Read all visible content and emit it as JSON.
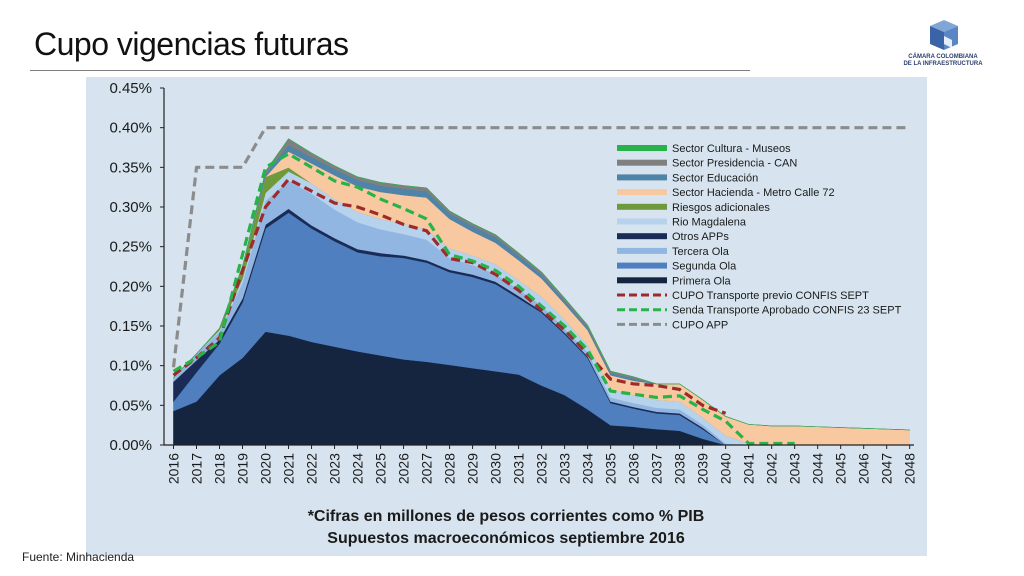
{
  "slide": {
    "title": "Cupo vigencias futuras",
    "source": "Fuente: Minhacienda",
    "logo_line1": "CÁMARA COLOMBIANA",
    "logo_line2": "DE LA INFRAESTRUCTURA"
  },
  "chart_data": {
    "type": "area",
    "stacked": true,
    "categories": [
      "2016",
      "2017",
      "2018",
      "2019",
      "2020",
      "2021",
      "2022",
      "2023",
      "2024",
      "2025",
      "2026",
      "2027",
      "2028",
      "2029",
      "2030",
      "2031",
      "2032",
      "2033",
      "2034",
      "2035",
      "2036",
      "2037",
      "2038",
      "2039",
      "2040",
      "2041",
      "2042",
      "2043",
      "2044",
      "2045",
      "2046",
      "2047",
      "2048"
    ],
    "ylim": [
      0,
      0.45
    ],
    "yticks": [
      "0.00%",
      "0.05%",
      "0.10%",
      "0.15%",
      "0.20%",
      "0.25%",
      "0.30%",
      "0.35%",
      "0.40%",
      "0.45%"
    ],
    "grid": false,
    "legend_position": "right",
    "note_line1": "*Cifras en millones de pesos corrientes como % PIB",
    "note_line2": "Supuestos macroeconómicos septiembre 2016",
    "series": [
      {
        "name": "Primera Ola",
        "color": "#15243f",
        "values": [
          0.043,
          0.055,
          0.088,
          0.11,
          0.143,
          0.138,
          0.13,
          0.124,
          0.118,
          0.113,
          0.108,
          0.105,
          0.101,
          0.097,
          0.093,
          0.089,
          0.075,
          0.063,
          0.045,
          0.025,
          0.023,
          0.02,
          0.018,
          0.008,
          0,
          0,
          0,
          0,
          0,
          0,
          0,
          0,
          0
        ]
      },
      {
        "name": "Segunda Ola",
        "color": "#4f7fbf",
        "values": [
          0.012,
          0.037,
          0.04,
          0.07,
          0.13,
          0.155,
          0.143,
          0.133,
          0.125,
          0.125,
          0.128,
          0.125,
          0.117,
          0.115,
          0.11,
          0.096,
          0.092,
          0.077,
          0.065,
          0.028,
          0.023,
          0.02,
          0.02,
          0.012,
          0,
          0,
          0,
          0,
          0,
          0,
          0,
          0,
          0
        ]
      },
      {
        "name": "Otros APPs",
        "color": "#1a2c55",
        "values": [
          0.025,
          0.015,
          0.005,
          0.005,
          0.005,
          0.005,
          0.004,
          0.004,
          0.004,
          0.004,
          0.003,
          0.003,
          0.003,
          0.003,
          0.003,
          0.003,
          0.002,
          0.002,
          0.002,
          0.002,
          0.002,
          0.002,
          0.002,
          0.002,
          0,
          0,
          0,
          0,
          0,
          0,
          0,
          0,
          0
        ]
      },
      {
        "name": "Tercera Ola",
        "color": "#92b6e2",
        "values": [
          0.005,
          0.008,
          0.01,
          0.02,
          0.03,
          0.035,
          0.04,
          0.036,
          0.034,
          0.03,
          0.027,
          0.026,
          0.015,
          0.012,
          0.01,
          0.008,
          0.007,
          0.005,
          0.005,
          0.005,
          0.005,
          0.005,
          0.005,
          0.004,
          0.002,
          0,
          0,
          0,
          0,
          0,
          0,
          0,
          0
        ]
      },
      {
        "name": "Rio Magdalena",
        "color": "#b7d2ec",
        "values": [
          0,
          0,
          0.002,
          0.005,
          0.01,
          0.012,
          0.013,
          0.013,
          0.013,
          0.013,
          0.013,
          0.013,
          0.012,
          0.012,
          0.012,
          0.012,
          0.011,
          0.011,
          0.01,
          0.01,
          0.01,
          0.01,
          0.01,
          0.009,
          0.01,
          0.002,
          0,
          0,
          0,
          0,
          0,
          0,
          0
        ]
      },
      {
        "name": "Riesgos adicionales",
        "color": "#6e9a3c",
        "values": [
          0,
          0,
          0.002,
          0.015,
          0.02,
          0.005,
          0,
          0,
          0,
          0,
          0,
          0,
          0,
          0,
          0,
          0,
          0,
          0,
          0,
          0,
          0,
          0,
          0,
          0,
          0,
          0,
          0,
          0,
          0,
          0,
          0,
          0,
          0
        ]
      },
      {
        "name": "Sector Hacienda - Metro Calle 72",
        "color": "#f8c9a0",
        "values": [
          0,
          0,
          0,
          0,
          0,
          0.02,
          0.025,
          0.03,
          0.032,
          0.034,
          0.036,
          0.04,
          0.037,
          0.03,
          0.027,
          0.025,
          0.023,
          0.02,
          0.018,
          0.018,
          0.018,
          0.02,
          0.022,
          0.022,
          0.024,
          0.024,
          0.024,
          0.024,
          0.023,
          0.022,
          0.021,
          0.02,
          0.019
        ]
      },
      {
        "name": "Sector Educación",
        "color": "#4f83a8",
        "values": [
          0,
          0,
          0,
          0,
          0.004,
          0.008,
          0.008,
          0.008,
          0.008,
          0.008,
          0.008,
          0.008,
          0.007,
          0.007,
          0.007,
          0.006,
          0.005,
          0.004,
          0.003,
          0.003,
          0.003,
          0,
          0,
          0,
          0,
          0,
          0,
          0,
          0,
          0,
          0,
          0,
          0
        ]
      },
      {
        "name": "Sector Presidencia - CAN",
        "color": "#808080",
        "values": [
          0,
          0,
          0,
          0,
          0.003,
          0.008,
          0.005,
          0.004,
          0.004,
          0.004,
          0.004,
          0.004,
          0.003,
          0.003,
          0.003,
          0.003,
          0.003,
          0.003,
          0.003,
          0.002,
          0.002,
          0,
          0,
          0,
          0,
          0,
          0,
          0,
          0,
          0,
          0,
          0,
          0
        ]
      },
      {
        "name": "Sector Cultura - Museos",
        "color": "#27b34a",
        "values": [
          0,
          0,
          0,
          0,
          0,
          0,
          0,
          0,
          0,
          0,
          0,
          0,
          0,
          0,
          0,
          0,
          0,
          0,
          0,
          0,
          0,
          0,
          0,
          0,
          0,
          0,
          0,
          0,
          0,
          0,
          0,
          0,
          0
        ]
      }
    ],
    "lines": [
      {
        "name": "CUPO Transporte previo CONFIS SEPT",
        "color": "#9e2a2b",
        "dash": "dashed",
        "values": [
          0.088,
          0.11,
          0.135,
          0.22,
          0.3,
          0.335,
          0.32,
          0.305,
          0.3,
          0.29,
          0.278,
          0.27,
          0.235,
          0.23,
          0.215,
          0.195,
          0.17,
          0.145,
          0.115,
          0.083,
          0.077,
          0.075,
          0.07,
          0.05,
          0.04,
          null,
          null,
          null,
          null,
          null,
          null,
          null,
          null
        ]
      },
      {
        "name": "Senda Transporte  Aprobado CONFIS 23 SEPT",
        "color": "#27b34a",
        "dash": "dashed",
        "values": [
          0.093,
          0.11,
          0.13,
          0.24,
          0.35,
          0.367,
          0.35,
          0.333,
          0.325,
          0.31,
          0.298,
          0.285,
          0.24,
          0.232,
          0.22,
          0.2,
          0.175,
          0.15,
          0.12,
          0.068,
          0.064,
          0.06,
          0.062,
          0.045,
          0.03,
          0.002,
          0.002,
          0.002,
          null,
          null,
          null,
          null,
          null
        ]
      },
      {
        "name": "CUPO APP",
        "color": "#8c8c8c",
        "dash": "dashed",
        "values": [
          0.098,
          0.35,
          0.35,
          0.35,
          0.4,
          0.4,
          0.4,
          0.4,
          0.4,
          0.4,
          0.4,
          0.4,
          0.4,
          0.4,
          0.4,
          0.4,
          0.4,
          0.4,
          0.4,
          0.4,
          0.4,
          0.4,
          0.4,
          0.4,
          0.4,
          0.4,
          0.4,
          0.4,
          0.4,
          0.4,
          0.4,
          0.4,
          0.4
        ]
      }
    ],
    "legend": [
      {
        "label": "Sector Cultura - Museos",
        "color": "#27b34a",
        "style": "solid"
      },
      {
        "label": "Sector Presidencia - CAN",
        "color": "#808080",
        "style": "solid"
      },
      {
        "label": "Sector Educación",
        "color": "#4f83a8",
        "style": "solid"
      },
      {
        "label": "Sector Hacienda - Metro Calle 72",
        "color": "#f8c9a0",
        "style": "solid"
      },
      {
        "label": "Riesgos adicionales",
        "color": "#6e9a3c",
        "style": "solid"
      },
      {
        "label": "Rio Magdalena",
        "color": "#b7d2ec",
        "style": "solid"
      },
      {
        "label": "Otros APPs",
        "color": "#1a2c55",
        "style": "solid"
      },
      {
        "label": "Tercera Ola",
        "color": "#92b6e2",
        "style": "solid"
      },
      {
        "label": "Segunda Ola",
        "color": "#4f7fbf",
        "style": "solid"
      },
      {
        "label": "Primera Ola",
        "color": "#15243f",
        "style": "solid"
      },
      {
        "label": "CUPO Transporte previo CONFIS SEPT",
        "color": "#9e2a2b",
        "style": "dashed"
      },
      {
        "label": "Senda Transporte  Aprobado CONFIS 23 SEPT",
        "color": "#27b34a",
        "style": "dashed"
      },
      {
        "label": "CUPO APP",
        "color": "#8c8c8c",
        "style": "dashed"
      }
    ]
  }
}
